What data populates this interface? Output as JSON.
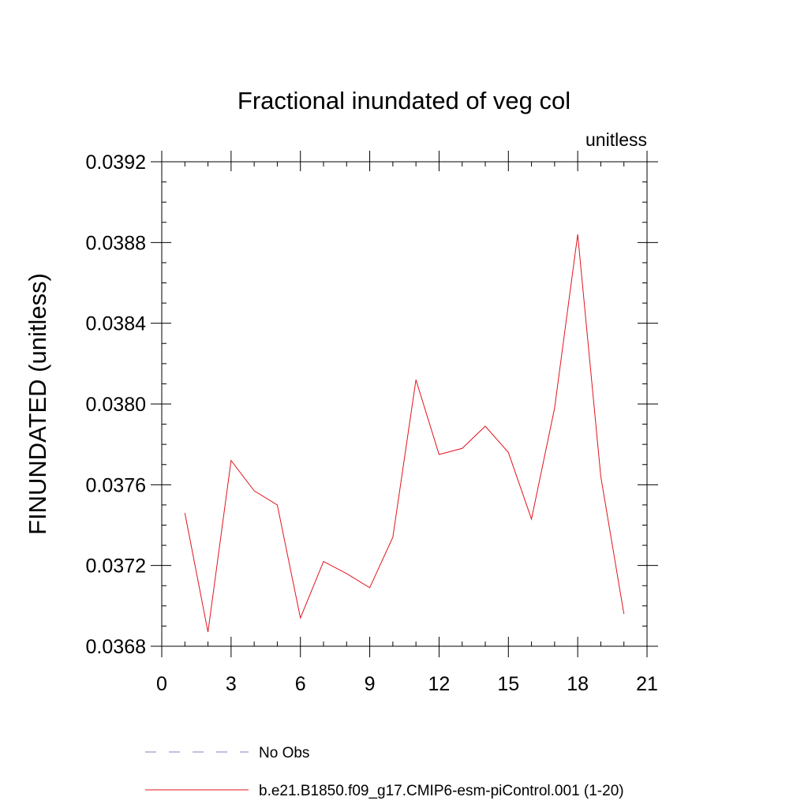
{
  "chart_data": {
    "type": "line",
    "title": "Fractional inundated of veg col",
    "units_label": "unitless",
    "ylabel": "FINUNDATED  (unitless)",
    "xlabel": "",
    "xlim": [
      0,
      21
    ],
    "ylim": [
      0.0368,
      0.0392
    ],
    "x_ticks": [
      0,
      3,
      6,
      9,
      12,
      15,
      18,
      21
    ],
    "x_tick_labels": [
      "0",
      "3",
      "6",
      "9",
      "12",
      "15",
      "18",
      "21"
    ],
    "y_ticks": [
      0.0368,
      0.0372,
      0.0376,
      0.038,
      0.0384,
      0.0388,
      0.0392
    ],
    "y_tick_labels": [
      "0.0368",
      "0.0372",
      "0.0376",
      "0.0380",
      "0.0384",
      "0.0388",
      "0.0392"
    ],
    "grid": false,
    "legend_position": "bottom",
    "series": [
      {
        "name": "No Obs",
        "color": "#8080c0",
        "dash": true,
        "x": [],
        "values": []
      },
      {
        "name": "b.e21.B1850.f09_g17.CMIP6-esm-piControl.001 (1-20)",
        "color": "#e0141e",
        "dash": false,
        "x": [
          1,
          2,
          3,
          4,
          5,
          6,
          7,
          8,
          9,
          10,
          11,
          12,
          13,
          14,
          15,
          16,
          17,
          18,
          19,
          20
        ],
        "values": [
          0.03746,
          0.03687,
          0.03772,
          0.03757,
          0.0375,
          0.03694,
          0.03722,
          0.03716,
          0.03709,
          0.03734,
          0.03812,
          0.03775,
          0.03778,
          0.03789,
          0.03776,
          0.03743,
          0.03798,
          0.03884,
          0.03764,
          0.03696
        ]
      }
    ]
  }
}
